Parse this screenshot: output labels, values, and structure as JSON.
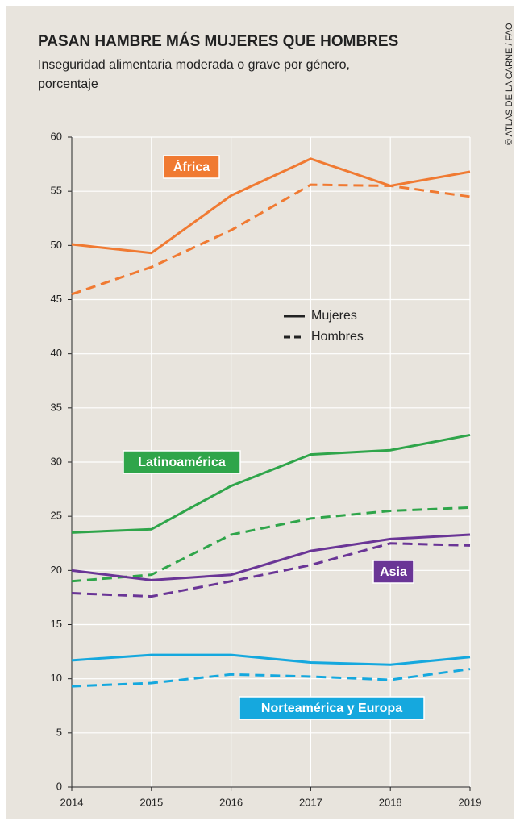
{
  "chart_data": {
    "type": "line",
    "title": "PASAN HAMBRE MÁS MUJERES QUE HOMBRES",
    "subtitle": [
      "Inseguridad alimentaria moderada o grave por género,",
      "porcentaje"
    ],
    "source": "© ATLAS DE LA CARNE / FAO",
    "x": [
      2014,
      2015,
      2016,
      2017,
      2018,
      2019
    ],
    "xlim": [
      2014,
      2019
    ],
    "xticks": [
      2014,
      2015,
      2016,
      2017,
      2018,
      2019
    ],
    "ylim": [
      0,
      60
    ],
    "yticks": [
      0,
      5,
      10,
      15,
      20,
      25,
      30,
      35,
      40,
      45,
      50,
      55,
      60
    ],
    "grid": true,
    "legend": [
      {
        "label": "Mujeres",
        "dash": false
      },
      {
        "label": "Hombres",
        "dash": true
      }
    ],
    "series": [
      {
        "name": "África",
        "color": "#f07a32",
        "lines": [
          {
            "values": [
              50.1,
              49.3,
              54.6,
              58.0,
              55.5,
              56.8
            ],
            "dash": false
          },
          {
            "values": [
              45.5,
              48.0,
              51.4,
              55.6,
              55.5,
              54.5
            ],
            "dash": true
          }
        ]
      },
      {
        "name": "Latinoamérica",
        "color": "#2fa54a",
        "lines": [
          {
            "values": [
              23.5,
              23.8,
              27.8,
              30.7,
              31.1,
              32.5
            ],
            "dash": false
          },
          {
            "values": [
              19.0,
              19.6,
              23.3,
              24.8,
              25.5,
              25.8
            ],
            "dash": true
          }
        ]
      },
      {
        "name": "Asia",
        "color": "#6a3596",
        "lines": [
          {
            "values": [
              20.0,
              19.1,
              19.6,
              21.8,
              22.9,
              23.3
            ],
            "dash": false
          },
          {
            "values": [
              17.9,
              17.6,
              19.0,
              20.5,
              22.5,
              22.3
            ],
            "dash": true
          }
        ]
      },
      {
        "name": "Norteamérica y Europa",
        "color": "#15a8de",
        "lines": [
          {
            "values": [
              11.7,
              12.2,
              12.2,
              11.5,
              11.3,
              12.0
            ],
            "dash": false
          },
          {
            "values": [
              9.3,
              9.6,
              10.4,
              10.2,
              9.9,
              10.9
            ],
            "dash": true
          }
        ]
      }
    ]
  }
}
